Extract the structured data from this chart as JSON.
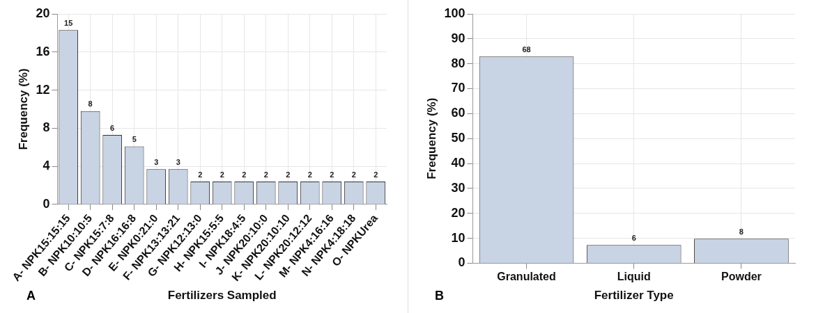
{
  "chart_data": [
    {
      "type": "bar",
      "xlabel": "Fertilizers Sampled",
      "ylabel": "Frequency (%)",
      "annotations": [
        "A",
        {
          "text": "15",
          "x": "A- NPK15:15:15",
          "y": 18.3
        },
        {
          "text": "8",
          "x": "B- NPK10:10:5",
          "y": 9.8
        },
        {
          "text": "6",
          "x": "C- NPK15:7:8",
          "y": 7.3
        },
        {
          "text": "5",
          "x": "D- NPK16:16:8",
          "y": 6.1
        },
        {
          "text": "3",
          "x": "E- NPK0:21:0",
          "y": 3.7
        },
        {
          "text": "3",
          "x": "F- NPK13:13:21",
          "y": 3.7
        },
        {
          "text": "2",
          "x": "G- NPK12:13:0",
          "y": 2.4
        },
        {
          "text": "2",
          "x": "H- NPK15:5:5",
          "y": 2.4
        },
        {
          "text": "2",
          "x": "I- NPK18:4:5",
          "y": 2.4
        },
        {
          "text": "2",
          "x": "J- NPK20:10:0",
          "y": 2.4
        },
        {
          "text": "2",
          "x": "K- NPK20:10:10",
          "y": 2.4
        },
        {
          "text": "2",
          "x": "L- NPK20:12:12",
          "y": 2.4
        },
        {
          "text": "2",
          "x": "M- NPK4:16:16",
          "y": 2.4
        },
        {
          "text": "2",
          "x": "N- NPK4:18:18",
          "y": 2.4
        },
        {
          "text": "2",
          "x": "O- NPKUrea",
          "y": 2.4
        }
      ],
      "categories": [
        "A- NPK15:15:15",
        "B- NPK10:10:5",
        "C- NPK15:7:8",
        "D- NPK16:16:8",
        "E- NPK0:21:0",
        "F- NPK13:13:21",
        "G- NPK12:13:0",
        "H- NPK15:5:5",
        "I- NPK18:4:5",
        "J- NPK20:10:0",
        "K- NPK20:10:10",
        "L- NPK20:12:12",
        "M- NPK4:16:16",
        "N- NPK4:18:18",
        "O- NPKUrea"
      ],
      "values": [
        18.3,
        9.8,
        7.3,
        6.1,
        3.7,
        3.7,
        2.4,
        2.4,
        2.4,
        2.4,
        2.4,
        2.4,
        2.4,
        2.4,
        2.4
      ],
      "color": "#c8d3e4",
      "ylim": [
        0,
        20
      ],
      "yticks": [
        0,
        4,
        8,
        12,
        16,
        20
      ],
      "grid": true
    },
    {
      "type": "bar",
      "xlabel": "Fertilizer Type",
      "ylabel": "Frequency (%)",
      "annotations": [
        "B",
        {
          "text": "68",
          "x": "Granulated",
          "y": 82.9
        },
        {
          "text": "6",
          "x": "Liquid",
          "y": 7.3
        },
        {
          "text": "8",
          "x": "Powder",
          "y": 9.8
        }
      ],
      "categories": [
        "Granulated",
        "Liquid",
        "Powder"
      ],
      "values": [
        82.9,
        7.3,
        9.8
      ],
      "color": "#c8d3e4",
      "ylim": [
        0,
        100
      ],
      "yticks": [
        0,
        10,
        20,
        30,
        40,
        50,
        60,
        70,
        80,
        90,
        100
      ],
      "grid": true
    }
  ]
}
